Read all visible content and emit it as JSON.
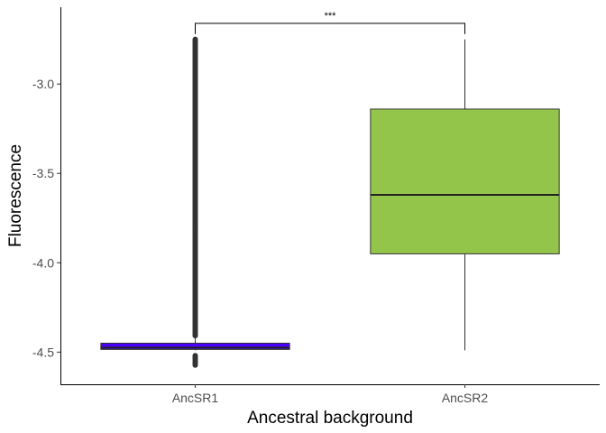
{
  "chart_data": {
    "type": "boxplot",
    "title": "",
    "xlabel": "Ancestral background",
    "ylabel": "Fluorescence",
    "ylim": [
      -4.68,
      -2.57
    ],
    "y_ticks": [
      -4.5,
      -4.0,
      -3.5,
      -3.0
    ],
    "y_tick_labels": [
      "-4.5",
      "-4.0",
      "-3.5",
      "-3.0"
    ],
    "grid": false,
    "legend": "none",
    "categories": [
      "AncSR1",
      "AncSR2"
    ],
    "boxes": [
      {
        "category": "AncSR1",
        "color": "#4B00FF",
        "whisker_low": -4.49,
        "q1": -4.485,
        "median": -4.475,
        "q3": -4.45,
        "whisker_high": -4.41,
        "outlier_range_high": [
          -4.41,
          -2.75
        ],
        "outlier_range_low": [
          -4.58,
          -4.52
        ]
      },
      {
        "category": "AncSR2",
        "color": "#94C54B",
        "whisker_low": -4.49,
        "q1": -3.95,
        "median": -3.62,
        "q3": -3.14,
        "whisker_high": -2.75
      }
    ],
    "annotation": {
      "text": "***",
      "from": "AncSR1",
      "to": "AncSR2",
      "y": -2.66,
      "tip_y": -2.72
    }
  }
}
